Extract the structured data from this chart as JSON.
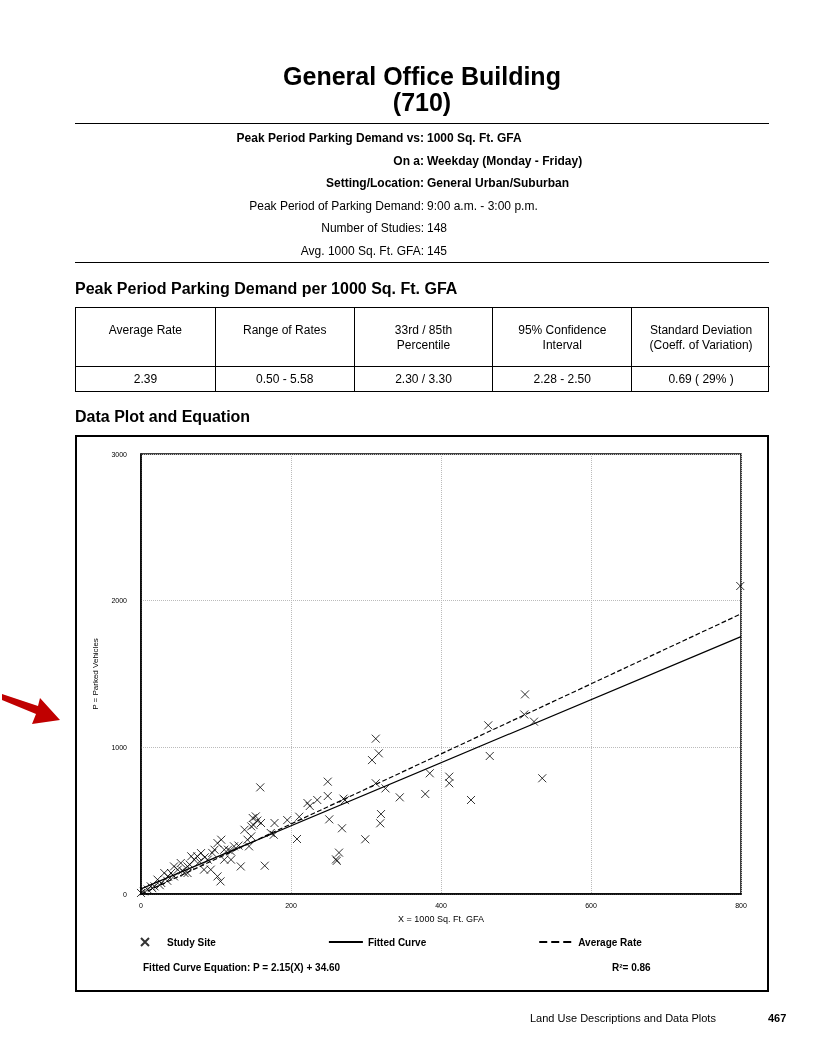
{
  "chart_data": [
    {
      "type": "other",
      "title": "General Office Building",
      "subtitle": "(710)",
      "annotations": [
        "Peak Period Parking Demand vs: 1000 Sq. Ft. GFA",
        "On a: Weekday (Monday - Friday)",
        "Setting/Location: General Urban/Suburban",
        "Peak Period of Parking Demand: 9:00 a.m. - 3:00 p.m.",
        "Number of Studies: 148",
        "Avg. 1000 Sq. Ft. GFA: 145"
      ]
    },
    {
      "type": "other",
      "title": "Peak Period Parking Demand per 1000 Sq. Ft. GFA",
      "annotations": [
        "Average Rate",
        "Range of Rates",
        "33rd / 85th Percentile",
        "95% Confidence Interval",
        "Standard Deviation (Coeff. of Variation)",
        "2.39",
        "0.50 - 5.58",
        "2.30 / 3.30",
        "2.28 - 2.50",
        "0.69 ( 29% )"
      ]
    },
    {
      "type": "scatter",
      "title": "Data Plot and Equation",
      "xlabel": "X = 1000 Sq. Ft. GFA",
      "ylabel": "P = Parked Vehicles",
      "xlim": [
        0,
        800
      ],
      "ylim": [
        0,
        3000
      ],
      "xticks": [
        0,
        200,
        400,
        600,
        800
      ],
      "yticks": [
        0,
        1000,
        2000,
        3000
      ],
      "grid": true,
      "legend": "bottom",
      "series": [
        {
          "name": "Study Site",
          "type": "scatter",
          "marker": "cross",
          "color": "#000000",
          "x": [
            512,
            511,
            524,
            463,
            465,
            535,
            385,
            411,
            411,
            379,
            345,
            440,
            313,
            317,
            308,
            313,
            326,
            320,
            319,
            299,
            249,
            249,
            251,
            268,
            264,
            260,
            261,
            208,
            272,
            270,
            235,
            222,
            225,
            211,
            195,
            799,
            159,
            165,
            133,
            106,
            102,
            153,
            160,
            173,
            178,
            147,
            144,
            138,
            124,
            111,
            102,
            116,
            120,
            84,
            80,
            71,
            62,
            89,
            67,
            58,
            49,
            44,
            36,
            27,
            18,
            9,
            4,
            40,
            98,
            147,
            149,
            177,
            142,
            107,
            75,
            53,
            31,
            22,
            13,
            0,
            44,
            62,
            93,
            111,
            85,
            95,
            55,
            35,
            15,
            25,
            65,
            78,
            120,
            130,
            155,
            150
          ],
          "values": [
            1361,
            1224,
            1175,
            1150,
            941,
            789,
            823,
            800,
            755,
            682,
            659,
            641,
            1059,
            959,
            913,
            755,
            720,
            545,
            482,
            373,
            766,
            668,
            509,
            448,
            282,
            236,
            226,
            375,
            640,
            650,
            641,
            620,
            600,
            527,
            504,
            2100,
            727,
            193,
            188,
            86,
            120,
            529,
            484,
            416,
            484,
            393,
            325,
            438,
            325,
            234,
            347,
            302,
            234,
            166,
            279,
            234,
            188,
            234,
            257,
            143,
            166,
            120,
            120,
            75,
            52,
            30,
            18,
            143,
            302,
            461,
            518,
            404,
            370,
            370,
            257,
            211,
            143,
            98,
            52,
            7,
            188,
            143,
            166,
            302,
            250,
            280,
            160,
            90,
            40,
            60,
            200,
            220,
            290,
            330,
            500,
            470
          ]
        },
        {
          "name": "Fitted Curve",
          "type": "line",
          "color": "#000000",
          "line_style": "solid",
          "marker": "none",
          "x": [
            0,
            800
          ],
          "values": [
            35,
            1755
          ]
        },
        {
          "name": "Average Rate",
          "type": "line",
          "color": "#000000",
          "line_style": "dashed",
          "marker": "none",
          "x": [
            0,
            800
          ],
          "values": [
            0,
            1910
          ]
        }
      ],
      "annotations": [
        "Fitted Curve Equation: P = 2.15(X) + 34.60",
        "R²= 0.86"
      ]
    },
    {
      "type": "other",
      "annotations": [
        "Land Use Descriptions and Data Plots",
        "467"
      ]
    }
  ]
}
